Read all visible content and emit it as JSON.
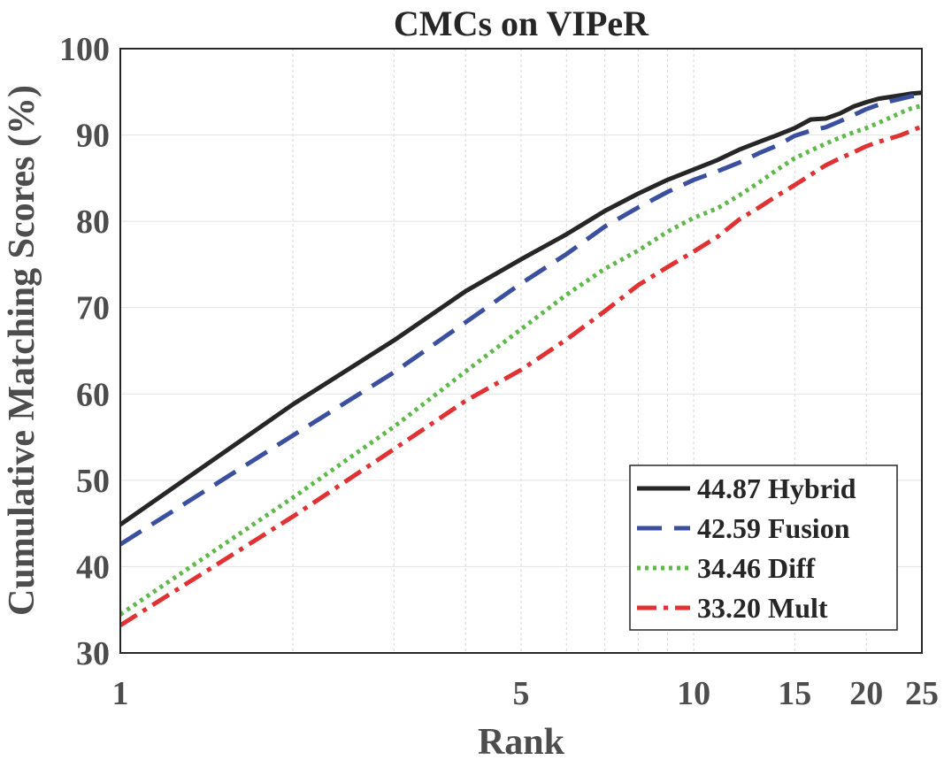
{
  "chart_data": {
    "type": "line",
    "title": "CMCs on VIPeR",
    "xlabel": "Rank",
    "ylabel": "Cumulative Matching Scores (%)",
    "xscale": "log",
    "xlim": [
      1,
      25
    ],
    "ylim": [
      30,
      100
    ],
    "xticks": [
      1,
      5,
      10,
      15,
      20,
      25
    ],
    "xtick_labels": [
      "1",
      "5",
      "10",
      "15",
      "20",
      "25"
    ],
    "xgrid": [
      1,
      2,
      3,
      4,
      5,
      6,
      7,
      8,
      9,
      10,
      15,
      20,
      25
    ],
    "yticks": [
      30,
      40,
      50,
      60,
      70,
      80,
      90,
      100
    ],
    "ytick_labels": [
      "30",
      "40",
      "50",
      "60",
      "70",
      "80",
      "90",
      "100"
    ],
    "grid": true,
    "legend_position": "bottom-right",
    "x": [
      1,
      2,
      3,
      4,
      5,
      6,
      7,
      8,
      9,
      10,
      11,
      12,
      13,
      14,
      15,
      16,
      17,
      18,
      19,
      20,
      21,
      22,
      23,
      24,
      25
    ],
    "series": [
      {
        "name": "44.87 Hybrid",
        "color": "#262626",
        "style": "solid",
        "values": [
          44.87,
          58.8,
          66.2,
          71.9,
          75.6,
          78.5,
          81.2,
          83.2,
          84.8,
          86.0,
          87.1,
          88.3,
          89.2,
          90.0,
          90.8,
          91.8,
          91.9,
          92.5,
          93.3,
          93.8,
          94.2,
          94.4,
          94.6,
          94.8,
          94.9
        ]
      },
      {
        "name": "42.59 Fusion",
        "color": "#3a4f9e",
        "style": "dashed",
        "values": [
          42.59,
          55.2,
          62.5,
          68.3,
          72.8,
          76.2,
          79.4,
          81.6,
          83.4,
          84.8,
          85.8,
          86.8,
          87.9,
          88.8,
          89.9,
          90.5,
          90.9,
          91.6,
          92.3,
          93.0,
          93.5,
          93.9,
          94.2,
          94.5,
          94.6
        ]
      },
      {
        "name": "34.46 Diff",
        "color": "#5fb94a",
        "style": "dotted",
        "values": [
          34.46,
          48.0,
          56.2,
          62.6,
          67.5,
          71.5,
          74.5,
          76.6,
          78.8,
          80.4,
          81.5,
          83.0,
          84.5,
          86.0,
          87.3,
          88.2,
          89.0,
          89.7,
          90.3,
          90.8,
          91.4,
          92.0,
          92.6,
          93.1,
          93.4
        ]
      },
      {
        "name": "33.20 Mult",
        "color": "#e03232",
        "style": "dashdot",
        "values": [
          33.2,
          45.8,
          53.6,
          59.2,
          62.8,
          66.3,
          69.6,
          72.6,
          74.7,
          76.5,
          78.2,
          80.2,
          81.6,
          83.0,
          84.2,
          85.4,
          86.5,
          87.3,
          88.0,
          88.7,
          89.2,
          89.6,
          90.0,
          90.5,
          91.0
        ]
      }
    ]
  }
}
